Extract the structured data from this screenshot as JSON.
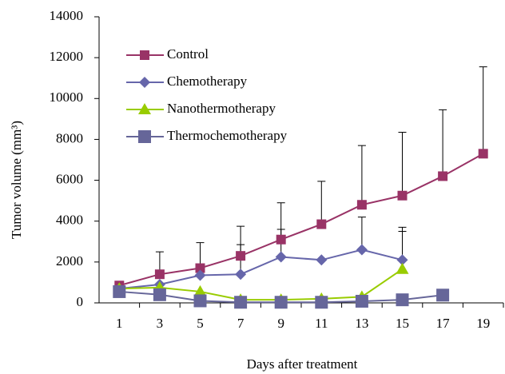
{
  "chart_data": {
    "type": "line",
    "categories": [
      "1",
      "3",
      "5",
      "7",
      "9",
      "11",
      "13",
      "15",
      "17",
      "19"
    ],
    "x_label": "Days after treatment",
    "y_label": "Tumor volume (mm³)",
    "ylim": [
      0,
      14000
    ],
    "yticks": [
      0,
      2000,
      4000,
      6000,
      8000,
      10000,
      12000,
      14000
    ],
    "legend": "upper left",
    "series": [
      {
        "name": "Control",
        "color": "#993366",
        "marker": "square",
        "values": [
          850,
          1400,
          1700,
          2300,
          3100,
          3850,
          4800,
          5250,
          6200,
          7300
        ],
        "errors": [
          200,
          1100,
          1250,
          1450,
          1800,
          2100,
          2900,
          3100,
          3250,
          4250
        ]
      },
      {
        "name": "Chemotherapy",
        "color": "#6666aa",
        "marker": "diamond",
        "values": [
          700,
          900,
          1350,
          1400,
          2250,
          2100,
          2600,
          2100,
          null,
          null
        ],
        "errors": [
          null,
          null,
          null,
          1450,
          1350,
          null,
          1600,
          1600,
          null,
          null
        ]
      },
      {
        "name": "Nanothermotherapy",
        "color": "#99cc00",
        "marker": "triangle",
        "values": [
          700,
          750,
          550,
          150,
          150,
          200,
          300,
          1650,
          null,
          null
        ],
        "errors": [
          null,
          null,
          null,
          null,
          null,
          null,
          null,
          1850,
          null,
          null
        ]
      },
      {
        "name": "Thermochemotherapy",
        "color": "#666699",
        "marker": "bigsquare",
        "values": [
          550,
          400,
          100,
          30,
          30,
          30,
          80,
          150,
          380,
          null
        ],
        "errors": [
          null,
          null,
          null,
          null,
          null,
          null,
          null,
          null,
          null,
          null
        ]
      }
    ]
  }
}
